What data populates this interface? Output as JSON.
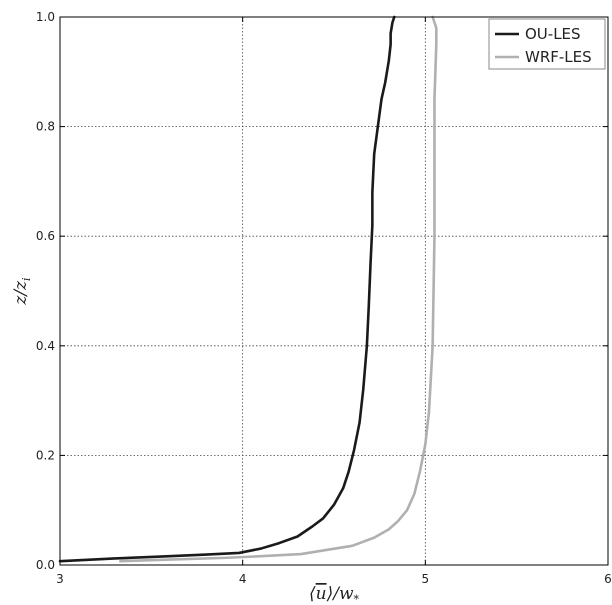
{
  "chart_data": {
    "type": "line",
    "xlabel": "⟨u̅⟩/w*",
    "ylabel": "z/zi",
    "xlim": [
      3,
      6
    ],
    "ylim": [
      0,
      1
    ],
    "xticks": [
      3,
      4,
      5,
      6
    ],
    "yticks": [
      0.0,
      0.2,
      0.4,
      0.6,
      0.8,
      1.0
    ],
    "grid": "dotted",
    "legend_position": "top-right",
    "series": [
      {
        "name": "OU-LES",
        "color": "#1a1a1a",
        "x": [
          3.0,
          3.3,
          3.6,
          3.8,
          3.98,
          4.1,
          4.2,
          4.3,
          4.38,
          4.44,
          4.5,
          4.55,
          4.58,
          4.61,
          4.64,
          4.66,
          4.68,
          4.69,
          4.7,
          4.71,
          4.71,
          4.72,
          4.74,
          4.76,
          4.78,
          4.8,
          4.81,
          4.81,
          4.82,
          4.83
        ],
        "y": [
          0.007,
          0.012,
          0.016,
          0.019,
          0.022,
          0.03,
          0.04,
          0.052,
          0.07,
          0.085,
          0.11,
          0.14,
          0.17,
          0.21,
          0.26,
          0.32,
          0.4,
          0.47,
          0.55,
          0.62,
          0.68,
          0.75,
          0.8,
          0.85,
          0.88,
          0.92,
          0.95,
          0.97,
          0.99,
          1.0
        ]
      },
      {
        "name": "WRF-LES",
        "color": "#b0b0b0",
        "x": [
          3.33,
          3.6,
          3.9,
          4.1,
          4.32,
          4.45,
          4.6,
          4.72,
          4.8,
          4.85,
          4.9,
          4.94,
          4.97,
          5.0,
          5.02,
          5.03,
          5.04,
          5.045,
          5.05,
          5.05,
          5.05,
          5.05,
          5.055,
          5.06,
          5.06,
          5.05,
          5.04
        ],
        "y": [
          0.007,
          0.01,
          0.013,
          0.016,
          0.02,
          0.027,
          0.035,
          0.05,
          0.065,
          0.08,
          0.1,
          0.13,
          0.17,
          0.22,
          0.28,
          0.34,
          0.4,
          0.5,
          0.6,
          0.7,
          0.8,
          0.85,
          0.9,
          0.95,
          0.98,
          0.99,
          1.0
        ]
      }
    ]
  }
}
